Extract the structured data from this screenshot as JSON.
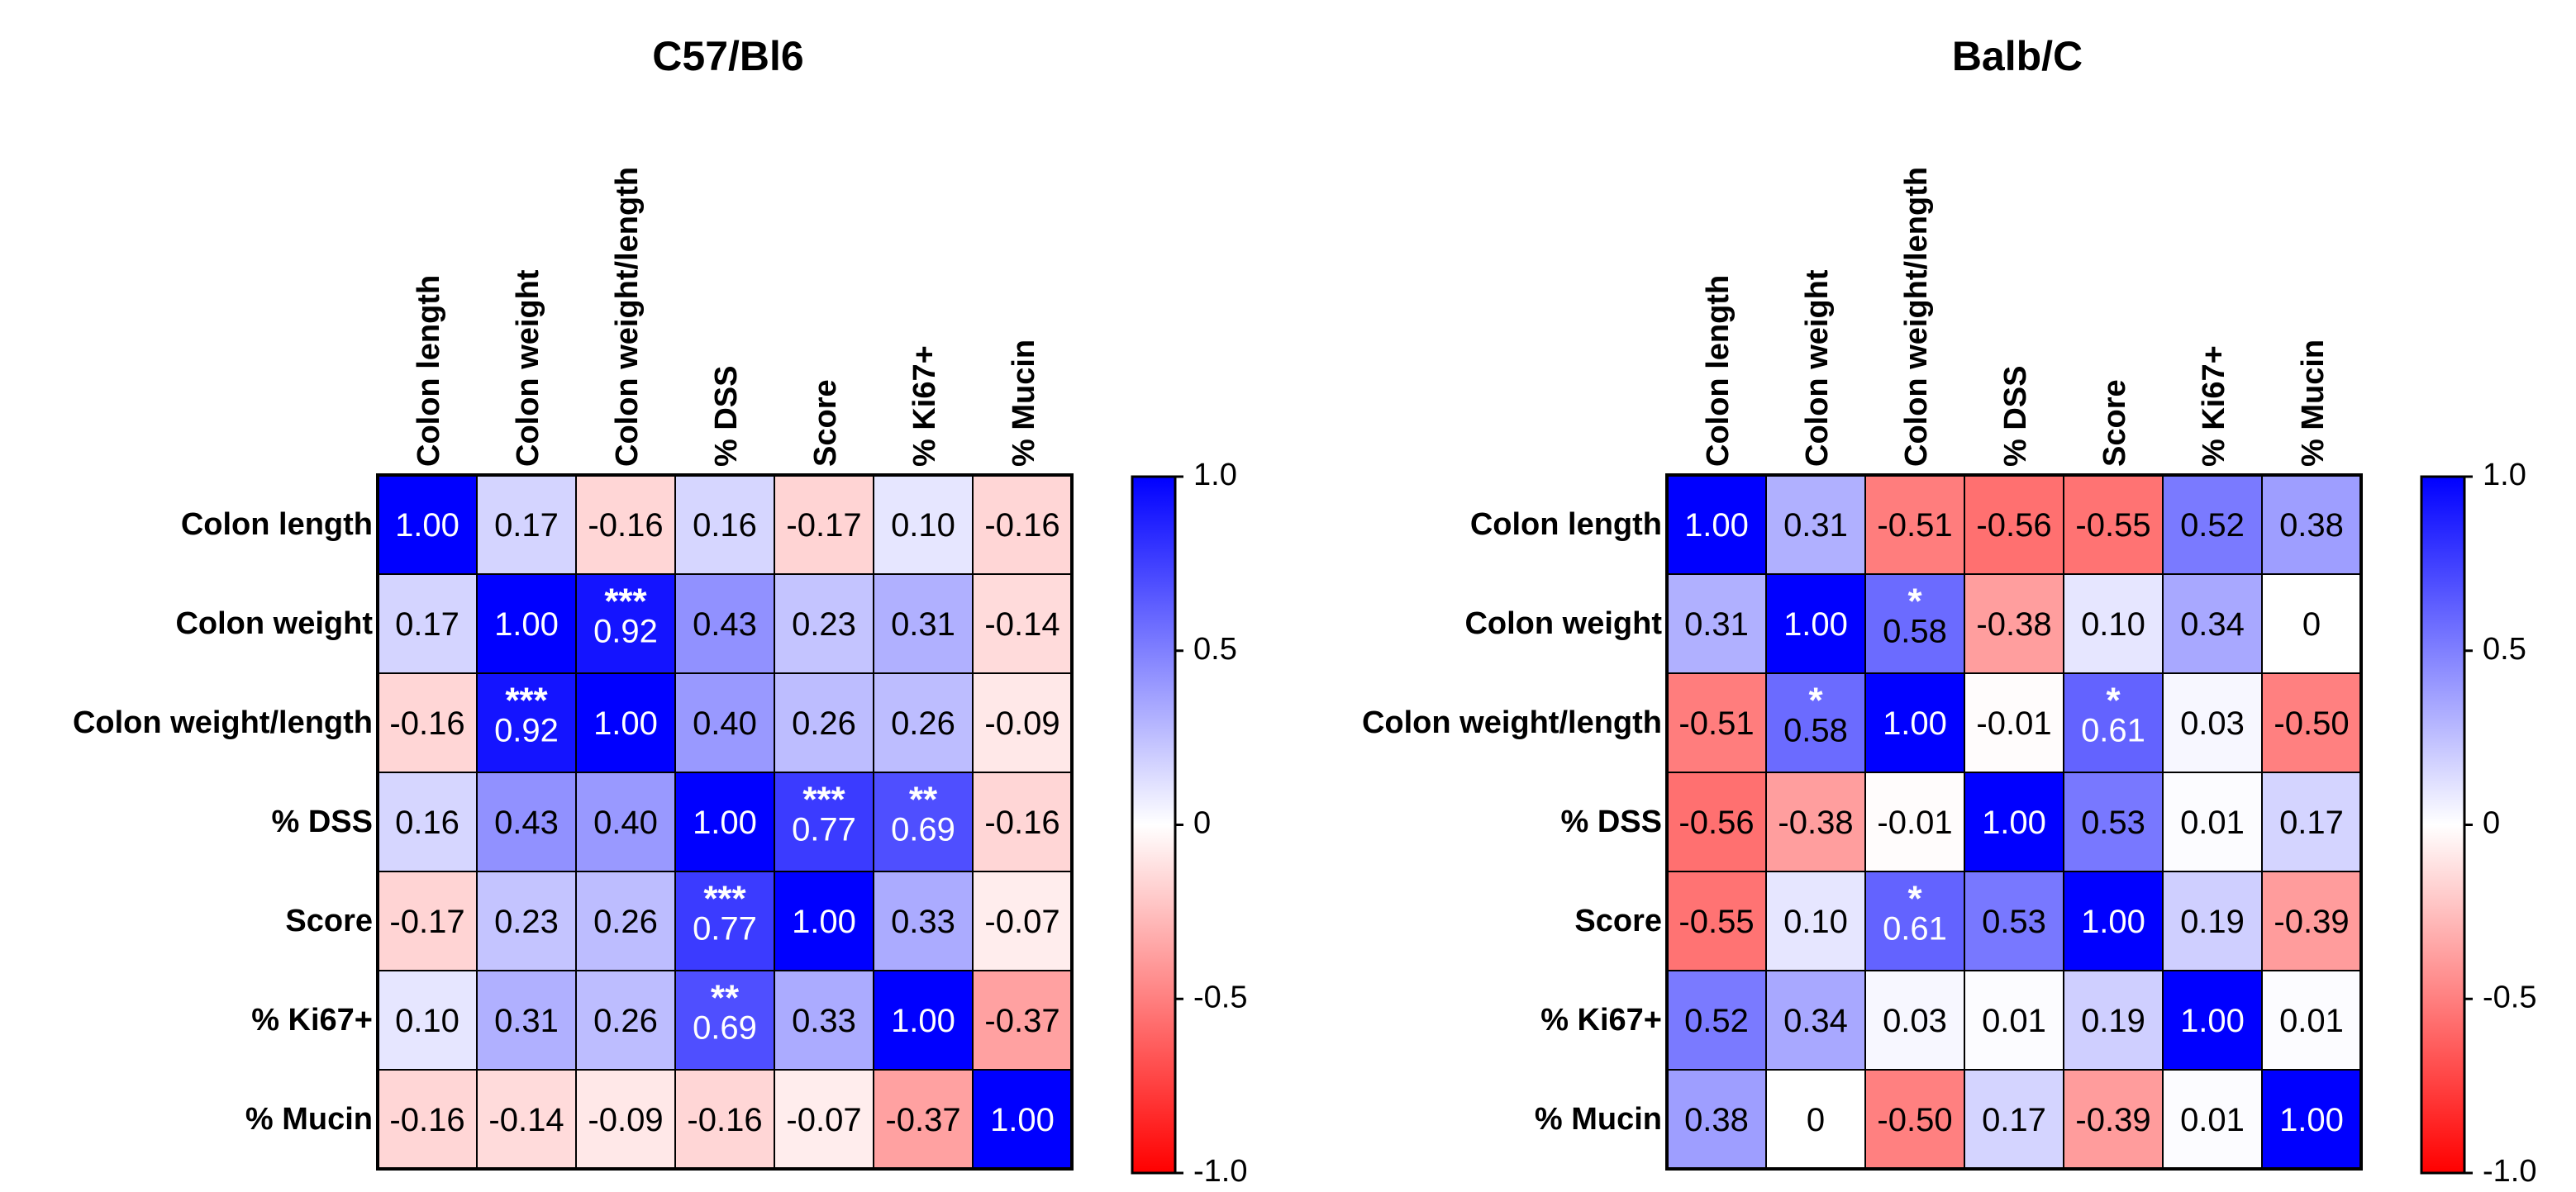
{
  "chart_data": [
    {
      "type": "heatmap",
      "title": "C57/Bl6",
      "row_labels": [
        "Colon length",
        "Colon weight",
        "Colon weight/length",
        "% DSS",
        "Score",
        "% Ki67+",
        "% Mucin"
      ],
      "col_labels": [
        "Colon length",
        "Colon weight",
        "Colon weight/length",
        "% DSS",
        "Score",
        "% Ki67+",
        "% Mucin"
      ],
      "values": [
        [
          1.0,
          0.17,
          -0.16,
          0.16,
          -0.17,
          0.1,
          -0.16
        ],
        [
          0.17,
          1.0,
          0.92,
          0.43,
          0.23,
          0.31,
          -0.14
        ],
        [
          -0.16,
          0.92,
          1.0,
          0.4,
          0.26,
          0.26,
          -0.09
        ],
        [
          0.16,
          0.43,
          0.4,
          1.0,
          0.77,
          0.69,
          -0.16
        ],
        [
          -0.17,
          0.23,
          0.26,
          0.77,
          1.0,
          0.33,
          -0.07
        ],
        [
          0.1,
          0.31,
          0.26,
          0.69,
          0.33,
          1.0,
          -0.37
        ],
        [
          -0.16,
          -0.14,
          -0.09,
          -0.16,
          -0.07,
          -0.37,
          1.0
        ]
      ],
      "labels": [
        [
          "1.00",
          "0.17",
          "-0.16",
          "0.16",
          "-0.17",
          "0.10",
          "-0.16"
        ],
        [
          "0.17",
          "1.00",
          "0.92",
          "0.43",
          "0.23",
          "0.31",
          "-0.14"
        ],
        [
          "-0.16",
          "0.92",
          "1.00",
          "0.40",
          "0.26",
          "0.26",
          "-0.09"
        ],
        [
          "0.16",
          "0.43",
          "0.40",
          "1.00",
          "0.77",
          "0.69",
          "-0.16"
        ],
        [
          "-0.17",
          "0.23",
          "0.26",
          "0.77",
          "1.00",
          "0.33",
          "-0.07"
        ],
        [
          "0.10",
          "0.31",
          "0.26",
          "0.69",
          "0.33",
          "1.00",
          "-0.37"
        ],
        [
          "-0.16",
          "-0.14",
          "-0.09",
          "-0.16",
          "-0.07",
          "-0.37",
          "1.00"
        ]
      ],
      "significance": [
        [
          "",
          "",
          "",
          "",
          "",
          "",
          ""
        ],
        [
          "",
          "",
          "***",
          "",
          "",
          "",
          ""
        ],
        [
          "",
          "***",
          "",
          "",
          "",
          "",
          ""
        ],
        [
          "",
          "",
          "",
          "",
          "***",
          "**",
          ""
        ],
        [
          "",
          "",
          "",
          "***",
          "",
          "",
          ""
        ],
        [
          "",
          "",
          "",
          "**",
          "",
          "",
          ""
        ],
        [
          "",
          "",
          "",
          "",
          "",
          "",
          ""
        ]
      ],
      "colorbar": {
        "min": -1.0,
        "max": 1.0,
        "ticks": [
          1.0,
          0.5,
          0,
          -0.5,
          -1.0
        ],
        "tick_labels": [
          "1.0",
          "0.5",
          "0",
          "-0.5",
          "-1.0"
        ]
      }
    },
    {
      "type": "heatmap",
      "title": "Balb/C",
      "row_labels": [
        "Colon length",
        "Colon weight",
        "Colon weight/length",
        "% DSS",
        "Score",
        "% Ki67+",
        "% Mucin"
      ],
      "col_labels": [
        "Colon length",
        "Colon weight",
        "Colon weight/length",
        "% DSS",
        "Score",
        "% Ki67+",
        "% Mucin"
      ],
      "values": [
        [
          1.0,
          0.31,
          -0.51,
          -0.56,
          -0.55,
          0.52,
          0.38
        ],
        [
          0.31,
          1.0,
          0.58,
          -0.38,
          0.1,
          0.34,
          0
        ],
        [
          -0.51,
          0.58,
          1.0,
          -0.01,
          0.61,
          0.03,
          -0.5
        ],
        [
          -0.56,
          -0.38,
          -0.01,
          1.0,
          0.53,
          0.01,
          0.17
        ],
        [
          -0.55,
          0.1,
          0.61,
          0.53,
          1.0,
          0.19,
          -0.39
        ],
        [
          0.52,
          0.34,
          0.03,
          0.01,
          0.19,
          1.0,
          0.01
        ],
        [
          0.38,
          0,
          -0.5,
          0.17,
          -0.39,
          0.01,
          1.0
        ]
      ],
      "labels": [
        [
          "1.00",
          "0.31",
          "-0.51",
          "-0.56",
          "-0.55",
          "0.52",
          "0.38"
        ],
        [
          "0.31",
          "1.00",
          "0.58",
          "-0.38",
          "0.10",
          "0.34",
          "0"
        ],
        [
          "-0.51",
          "0.58",
          "1.00",
          "-0.01",
          "0.61",
          "0.03",
          "-0.50"
        ],
        [
          "-0.56",
          "-0.38",
          "-0.01",
          "1.00",
          "0.53",
          "0.01",
          "0.17"
        ],
        [
          "-0.55",
          "0.10",
          "0.61",
          "0.53",
          "1.00",
          "0.19",
          "-0.39"
        ],
        [
          "0.52",
          "0.34",
          "0.03",
          "0.01",
          "0.19",
          "1.00",
          "0.01"
        ],
        [
          "0.38",
          "0",
          "-0.50",
          "0.17",
          "-0.39",
          "0.01",
          "1.00"
        ]
      ],
      "significance": [
        [
          "",
          "",
          "",
          "",
          "",
          "",
          ""
        ],
        [
          "",
          "",
          "*",
          "",
          "",
          "",
          ""
        ],
        [
          "",
          "*",
          "",
          "",
          "*",
          "",
          ""
        ],
        [
          "",
          "",
          "",
          "",
          "",
          "",
          ""
        ],
        [
          "",
          "",
          "*",
          "",
          "",
          "",
          ""
        ],
        [
          "",
          "",
          "",
          "",
          "",
          "",
          ""
        ],
        [
          "",
          "",
          "",
          "",
          "",
          "",
          ""
        ]
      ],
      "colorbar": {
        "min": -1.0,
        "max": 1.0,
        "ticks": [
          1.0,
          0.5,
          0,
          -0.5,
          -1.0
        ],
        "tick_labels": [
          "1.0",
          "0.5",
          "0",
          "-0.5",
          "-1.0"
        ]
      }
    }
  ]
}
